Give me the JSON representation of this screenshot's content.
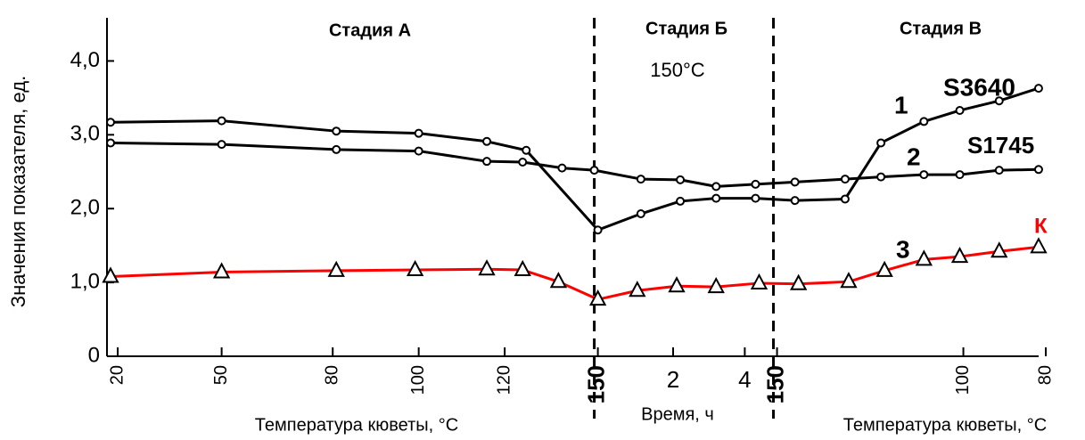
{
  "chart_data": {
    "type": "line",
    "y_label": "Значения показателя, ед.",
    "x_labels": [
      "Температура кюветы, °С",
      "Время, ч",
      "Температура кюветы, °С"
    ],
    "annotations": [
      "Стадия А",
      "Стадия Б",
      "Стадия В",
      "150°С"
    ],
    "stage_bounds": [
      13.6,
      18.6
    ],
    "curve_numbers": [
      "1",
      "2",
      "3"
    ],
    "xlim": [
      0,
      26.25
    ],
    "ylim": [
      0,
      4.5
    ],
    "yticks": [
      0,
      {
        "value": 1,
        "label": "1,0"
      },
      {
        "value": 2,
        "label": "2,0"
      },
      {
        "value": 3,
        "label": "3,0"
      },
      {
        "value": 4,
        "label": "4,0"
      }
    ],
    "xticks": [
      {
        "value": 0.3,
        "label": "20"
      },
      {
        "value": 3.2,
        "label": "50"
      },
      {
        "value": 6.3,
        "label": "80"
      },
      {
        "value": 8.7,
        "label": "100"
      },
      {
        "value": 11.1,
        "label": "120"
      },
      {
        "value": 13.7,
        "label": "150"
      },
      {
        "value": 15.8,
        "label": "2"
      },
      {
        "value": 17.8,
        "label": "4"
      },
      {
        "value": 18.7,
        "label": "150"
      },
      {
        "value": 23.9,
        "label": "100"
      },
      {
        "value": 26.2,
        "label": "80"
      }
    ],
    "series": [
      {
        "name": "S3640",
        "color": "#000000",
        "marker": "circle",
        "x": [
          0.1,
          3.2,
          6.4,
          8.7,
          10.6,
          11.7,
          13.7,
          14.9,
          16.0,
          17.0,
          18.1,
          19.2,
          20.6,
          21.6,
          22.8,
          23.8,
          24.9,
          26.0
        ],
        "values": [
          3.17,
          3.19,
          3.05,
          3.02,
          2.91,
          2.79,
          1.71,
          1.93,
          2.1,
          2.14,
          2.14,
          2.11,
          2.13,
          2.89,
          3.18,
          3.33,
          3.46,
          3.63
        ]
      },
      {
        "name": "S1745",
        "color": "#000000",
        "marker": "circle",
        "x": [
          0.1,
          3.2,
          6.4,
          8.7,
          10.6,
          11.6,
          12.7,
          13.6,
          14.9,
          16.0,
          17.0,
          18.1,
          19.2,
          20.6,
          21.6,
          22.8,
          23.8,
          24.9,
          26.0
        ],
        "values": [
          2.89,
          2.87,
          2.8,
          2.78,
          2.64,
          2.63,
          2.55,
          2.52,
          2.4,
          2.39,
          2.3,
          2.33,
          2.36,
          2.4,
          2.43,
          2.46,
          2.46,
          2.52,
          2.53
        ]
      },
      {
        "name": "К",
        "color": "#ff0000",
        "marker": "triangle",
        "x": [
          0.1,
          3.2,
          6.4,
          8.6,
          10.6,
          11.6,
          12.6,
          13.7,
          14.8,
          15.9,
          17.0,
          18.2,
          19.3,
          20.7,
          21.7,
          22.8,
          23.8,
          24.9,
          26.0
        ],
        "values": [
          1.08,
          1.14,
          1.16,
          1.17,
          1.18,
          1.17,
          1.01,
          0.77,
          0.89,
          0.95,
          0.94,
          0.99,
          0.98,
          1.01,
          1.16,
          1.31,
          1.35,
          1.42,
          1.48
        ]
      }
    ]
  }
}
